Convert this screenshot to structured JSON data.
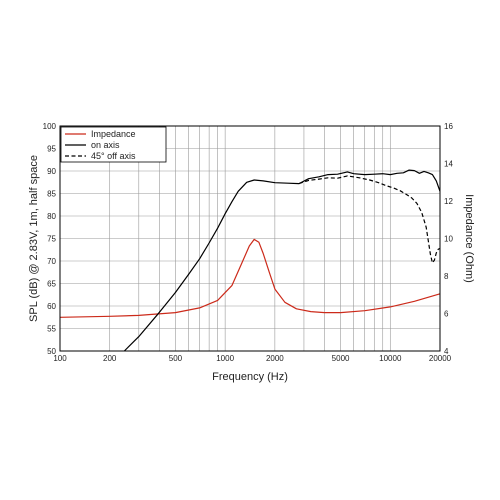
{
  "chart_data": {
    "type": "line",
    "xlabel": "Frequency (Hz)",
    "ylabel": "SPL (dB) @ 2.83V, 1m, half space",
    "y2label": "Impedance (Ohm)",
    "xscale": "log",
    "xlim": [
      100,
      20000
    ],
    "ylim": [
      50,
      100
    ],
    "y2lim": [
      4,
      16
    ],
    "grid": true,
    "legend_position": "top-left",
    "x_ticks": [
      "100",
      "200",
      "500",
      "1000",
      "2000",
      "5000",
      "10000",
      "20000"
    ],
    "y_ticks": [
      "50",
      "55",
      "60",
      "65",
      "70",
      "75",
      "80",
      "85",
      "90",
      "95",
      "100"
    ],
    "y2_ticks": [
      "4",
      "6",
      "8",
      "10",
      "12",
      "14",
      "16"
    ],
    "legend": [
      {
        "label": "Impedance",
        "color": "#cc2a1a",
        "dash": "solid"
      },
      {
        "label": "on axis",
        "color": "#000000",
        "dash": "solid"
      },
      {
        "label": "45° off axis",
        "color": "#000000",
        "dash": "dashed"
      }
    ],
    "series": [
      {
        "name": "Impedance",
        "axis": "right",
        "color": "#cc2a1a",
        "x": [
          100,
          200,
          300,
          500,
          700,
          900,
          1100,
          1250,
          1400,
          1500,
          1600,
          1700,
          1850,
          2000,
          2300,
          2700,
          3300,
          4000,
          5000,
          7000,
          10000,
          14000,
          20000
        ],
        "y": [
          5.8,
          5.85,
          5.9,
          6.05,
          6.3,
          6.7,
          7.5,
          8.6,
          9.6,
          9.95,
          9.8,
          9.2,
          8.2,
          7.3,
          6.6,
          6.25,
          6.1,
          6.05,
          6.05,
          6.15,
          6.35,
          6.65,
          7.05
        ]
      },
      {
        "name": "on axis",
        "axis": "left",
        "color": "#000000",
        "x": [
          245,
          300,
          400,
          500,
          600,
          700,
          800,
          900,
          1000,
          1100,
          1200,
          1350,
          1500,
          1700,
          2000,
          2400,
          2800,
          3200,
          3700,
          4200,
          4800,
          5500,
          6000,
          7000,
          8000,
          9000,
          10000,
          11000,
          12000,
          13000,
          14000,
          15000,
          16000,
          17000,
          18000,
          19000,
          20000
        ],
        "y": [
          50,
          53.2,
          58.6,
          63.0,
          67.0,
          70.5,
          74.0,
          77.3,
          80.5,
          83.2,
          85.5,
          87.5,
          88.0,
          87.8,
          87.4,
          87.3,
          87.2,
          88.3,
          88.7,
          89.2,
          89.3,
          89.8,
          89.4,
          89.2,
          89.3,
          89.4,
          89.2,
          89.5,
          89.6,
          90.2,
          90.1,
          89.5,
          89.9,
          89.6,
          89.2,
          87.8,
          85.5
        ]
      },
      {
        "name": "45° off axis",
        "axis": "left",
        "color": "#000000",
        "x": [
          2800,
          3200,
          3700,
          4200,
          4800,
          5500,
          6500,
          7500,
          8500,
          9500,
          10500,
          11500,
          12500,
          13500,
          14500,
          15500,
          16500,
          17000,
          17500,
          18000,
          18500,
          19000,
          19500,
          20000
        ],
        "y": [
          87.2,
          87.9,
          88.2,
          88.5,
          88.4,
          88.9,
          88.5,
          88.0,
          87.4,
          86.7,
          86.2,
          85.6,
          84.8,
          84.0,
          82.8,
          80.8,
          77.5,
          74.5,
          71.5,
          69.6,
          70.2,
          71.8,
          72.6,
          72.8
        ]
      }
    ]
  }
}
